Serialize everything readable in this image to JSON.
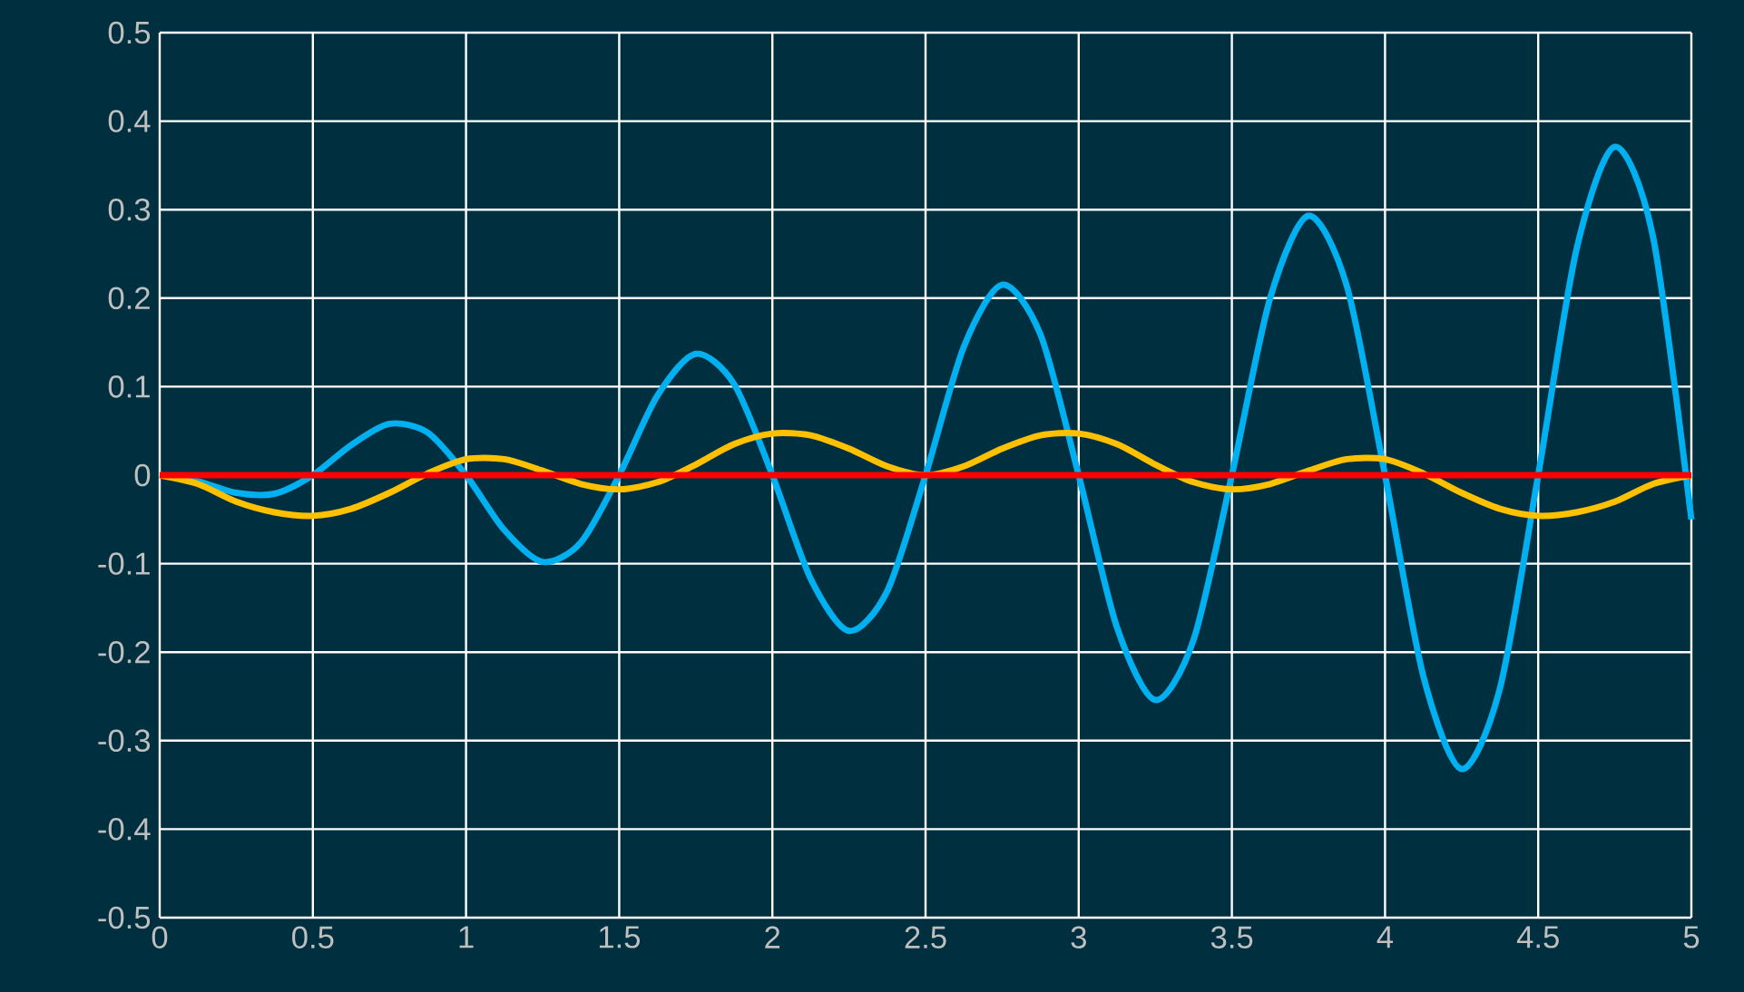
{
  "chart_data": {
    "type": "line",
    "x": [
      0,
      0.125,
      0.25,
      0.375,
      0.5,
      0.625,
      0.75,
      0.875,
      1,
      1.125,
      1.25,
      1.375,
      1.5,
      1.625,
      1.75,
      1.875,
      2,
      2.125,
      2.25,
      2.375,
      2.5,
      2.625,
      2.75,
      2.875,
      3,
      3.125,
      3.25,
      3.375,
      3.5,
      3.625,
      3.75,
      3.875,
      4,
      4.125,
      4.25,
      4.375,
      4.5,
      4.625,
      4.75,
      4.875,
      5
    ],
    "series": [
      {
        "color": "#00b0f0",
        "values": [
          0,
          -0.007,
          -0.02,
          -0.021,
          0,
          0.034,
          0.058,
          0.048,
          0,
          -0.062,
          -0.098,
          -0.076,
          0,
          0.09,
          0.137,
          0.103,
          0,
          -0.117,
          -0.176,
          -0.131,
          0,
          0.145,
          0.215,
          0.159,
          0,
          -0.172,
          -0.254,
          -0.186,
          0,
          0.2,
          0.293,
          0.214,
          0,
          -0.227,
          -0.332,
          -0.241,
          0,
          0.255,
          0.371,
          0.269,
          -0.05
        ]
      },
      {
        "color": "#ffc000",
        "values": [
          0,
          -0.01,
          -0.03,
          -0.042,
          -0.046,
          -0.038,
          -0.02,
          0.002,
          0.018,
          0.018,
          0.005,
          -0.01,
          -0.016,
          -0.008,
          0.012,
          0.035,
          0.047,
          0.045,
          0.03,
          0.01,
          0,
          0.01,
          0.03,
          0.045,
          0.047,
          0.035,
          0.012,
          -0.008,
          -0.016,
          -0.01,
          0.005,
          0.018,
          0.018,
          0.002,
          -0.02,
          -0.038,
          -0.046,
          -0.042,
          -0.03,
          -0.01,
          0
        ]
      },
      {
        "color": "#ff0000",
        "values": [
          0,
          0,
          0,
          0,
          0,
          0,
          0,
          0,
          0,
          0,
          0,
          0,
          0,
          0,
          0,
          0,
          0,
          0,
          0,
          0,
          0,
          0,
          0,
          0,
          0,
          0,
          0,
          0,
          0,
          0,
          0,
          0,
          0,
          0,
          0,
          0,
          0,
          0,
          0,
          0,
          0
        ]
      }
    ],
    "xlim": [
      0,
      5
    ],
    "ylim": [
      -0.5,
      0.5
    ],
    "xticks": [
      0,
      0.5,
      1,
      1.5,
      2,
      2.5,
      3,
      3.5,
      4,
      4.5,
      5
    ],
    "yticks": [
      -0.5,
      -0.4,
      -0.3,
      -0.2,
      -0.1,
      0,
      0.1,
      0.2,
      0.3,
      0.4,
      0.5
    ],
    "grid": true,
    "marker": "none",
    "line_style": "solid"
  }
}
